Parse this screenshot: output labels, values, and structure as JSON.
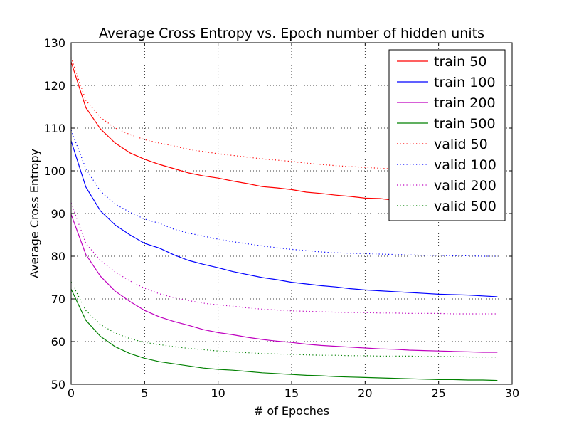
{
  "chart_data": {
    "type": "line",
    "title": "Average Cross Entropy vs. Epoch number of hidden units",
    "xlabel": "# of Epoches",
    "ylabel": "Average Cross Entropy",
    "xlim": [
      0,
      30
    ],
    "ylim": [
      50,
      130
    ],
    "xticks": [
      "0",
      "5",
      "10",
      "15",
      "20",
      "25",
      "30"
    ],
    "yticks": [
      "50",
      "60",
      "70",
      "80",
      "90",
      "100",
      "110",
      "120",
      "130"
    ],
    "grid": true,
    "legend_position": "top-right",
    "x": [
      0,
      1,
      2,
      3,
      4,
      5,
      6,
      7,
      8,
      9,
      10,
      11,
      12,
      13,
      14,
      15,
      16,
      17,
      18,
      19,
      20,
      21,
      22,
      23,
      24,
      25,
      26,
      27,
      28,
      29
    ],
    "series": [
      {
        "name": "train 50",
        "color": "#ff0000",
        "style": "solid",
        "values": [
          125.5,
          114.8,
          109.8,
          106.5,
          104.2,
          102.7,
          101.5,
          100.5,
          99.5,
          98.8,
          98.3,
          97.6,
          97.0,
          96.3,
          96.0,
          95.6,
          95.0,
          94.7,
          94.3,
          94.0,
          93.6,
          93.5,
          93.1,
          92.9,
          92.6,
          92.4,
          92.2,
          92.0,
          91.8,
          91.6
        ]
      },
      {
        "name": "train 100",
        "color": "#0000ff",
        "style": "solid",
        "values": [
          107.0,
          96.2,
          90.6,
          87.3,
          85.0,
          83.0,
          81.9,
          80.3,
          79.0,
          78.1,
          77.3,
          76.4,
          75.7,
          75.0,
          74.5,
          73.9,
          73.5,
          73.1,
          72.8,
          72.4,
          72.1,
          71.9,
          71.7,
          71.5,
          71.3,
          71.1,
          71.0,
          70.9,
          70.7,
          70.5
        ]
      },
      {
        "name": "train 200",
        "color": "#bf00bf",
        "style": "solid",
        "values": [
          89.8,
          80.4,
          75.3,
          71.8,
          69.4,
          67.3,
          65.8,
          64.7,
          63.8,
          62.8,
          62.1,
          61.6,
          61.0,
          60.5,
          60.1,
          59.8,
          59.4,
          59.1,
          58.9,
          58.7,
          58.5,
          58.3,
          58.2,
          58.0,
          57.9,
          57.8,
          57.7,
          57.6,
          57.5,
          57.5
        ]
      },
      {
        "name": "train 500",
        "color": "#008000",
        "style": "solid",
        "values": [
          72.3,
          65.0,
          61.2,
          58.8,
          57.2,
          56.1,
          55.3,
          54.8,
          54.3,
          53.8,
          53.5,
          53.3,
          53.0,
          52.7,
          52.5,
          52.3,
          52.1,
          52.0,
          51.8,
          51.7,
          51.6,
          51.5,
          51.4,
          51.3,
          51.2,
          51.1,
          51.1,
          51.0,
          51.0,
          50.9
        ]
      },
      {
        "name": "valid 50",
        "color": "#ff0000",
        "style": "dotted",
        "values": [
          126.5,
          116.5,
          112.5,
          110.0,
          108.5,
          107.3,
          106.5,
          105.8,
          105.0,
          104.5,
          104.0,
          103.6,
          103.2,
          102.8,
          102.5,
          102.2,
          101.8,
          101.5,
          101.2,
          101.0,
          100.8,
          100.6,
          100.4,
          100.2,
          100.0,
          99.9,
          99.8,
          99.7,
          99.6,
          99.5
        ]
      },
      {
        "name": "valid 100",
        "color": "#0000ff",
        "style": "dotted",
        "values": [
          109.5,
          100.5,
          95.2,
          92.2,
          90.3,
          88.7,
          87.7,
          86.3,
          85.4,
          84.7,
          84.0,
          83.4,
          82.9,
          82.4,
          82.0,
          81.6,
          81.3,
          81.0,
          80.8,
          80.7,
          80.6,
          80.5,
          80.4,
          80.3,
          80.2,
          80.2,
          80.1,
          80.1,
          80.0,
          80.0
        ]
      },
      {
        "name": "valid 200",
        "color": "#bf00bf",
        "style": "dotted",
        "values": [
          92.5,
          83.0,
          79.0,
          76.3,
          74.2,
          72.5,
          71.2,
          70.3,
          69.6,
          69.0,
          68.6,
          68.3,
          67.9,
          67.6,
          67.4,
          67.2,
          67.1,
          67.0,
          66.9,
          66.8,
          66.8,
          66.7,
          66.7,
          66.6,
          66.6,
          66.6,
          66.5,
          66.5,
          66.5,
          66.5
        ]
      },
      {
        "name": "valid 500",
        "color": "#008000",
        "style": "dotted",
        "values": [
          74.0,
          67.3,
          64.0,
          62.0,
          60.7,
          59.8,
          59.3,
          58.8,
          58.4,
          58.1,
          57.8,
          57.6,
          57.4,
          57.2,
          57.1,
          57.0,
          56.9,
          56.8,
          56.8,
          56.7,
          56.7,
          56.6,
          56.6,
          56.6,
          56.5,
          56.5,
          56.5,
          56.4,
          56.4,
          56.4
        ]
      }
    ]
  }
}
